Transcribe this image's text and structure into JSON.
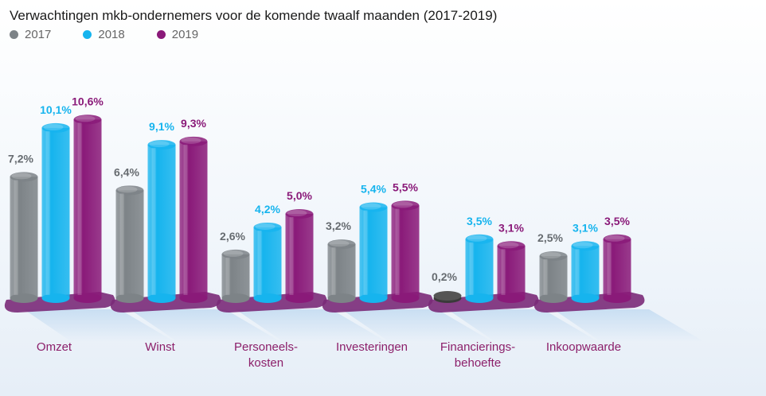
{
  "colors": {
    "2017": "#7d8387",
    "2018": "#16b4ee",
    "2019": "#8a1a79",
    "base": "#7a2a78",
    "category_label": "#8c1f6a"
  },
  "chart_data": {
    "type": "bar",
    "title": "Verwachtingen mkb-ondernemers voor de komende twaalf maanden (2017-2019)",
    "categories": [
      [
        "Omzet"
      ],
      [
        "Winst"
      ],
      [
        "Personeels-",
        "kosten"
      ],
      [
        "Investeringen"
      ],
      [
        "Financierings-",
        "behoefte"
      ],
      [
        "Inkoopwaarde"
      ]
    ],
    "series": [
      {
        "name": "2017",
        "values": [
          7.2,
          6.4,
          2.6,
          3.2,
          0.2,
          2.5
        ],
        "labels": [
          "7,2%",
          "6,4%",
          "2,6%",
          "3,2%",
          "0,2%",
          "2,5%"
        ]
      },
      {
        "name": "2018",
        "values": [
          10.1,
          9.1,
          4.2,
          5.4,
          3.5,
          3.1
        ],
        "labels": [
          "10,1%",
          "9,1%",
          "4,2%",
          "5,4%",
          "3,5%",
          "3,1%"
        ]
      },
      {
        "name": "2019",
        "values": [
          10.6,
          9.3,
          5.0,
          5.5,
          3.1,
          3.5
        ],
        "labels": [
          "10,6%",
          "9,3%",
          "5,0%",
          "5,5%",
          "3,1%",
          "3,5%"
        ]
      }
    ],
    "legend_position": "top-left",
    "grid": false
  }
}
